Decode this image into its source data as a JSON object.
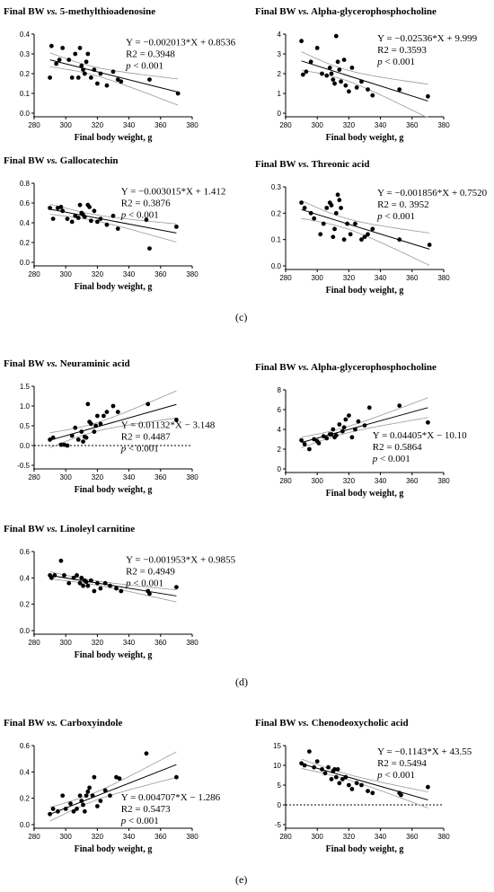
{
  "figure_labels": {
    "c": "(c)",
    "d": "(d)",
    "e": "(e)"
  },
  "chart_data": [
    {
      "type": "scatter",
      "title": "Final BW vs. 5-methylthioadenosine",
      "xlabel": "Final body weight, g",
      "ylabel": "",
      "xlim": [
        280,
        380
      ],
      "ylim": [
        0.0,
        0.4
      ],
      "xticks": [
        280,
        300,
        320,
        340,
        360,
        380
      ],
      "yticks": [
        "0.0",
        "0.1",
        "0.2",
        "0.3",
        "0.4"
      ],
      "fit": {
        "slope": -0.002013,
        "intercept": 0.8536
      },
      "equation": "Y = −0.002013*X + 0.8536",
      "r2": "R2 = 0.3948",
      "p": "p < 0.001",
      "x": [
        290,
        291,
        294,
        298,
        302,
        304,
        306,
        308,
        310,
        311,
        312,
        314,
        316,
        318,
        320,
        322,
        326,
        330,
        333,
        335,
        353,
        371,
        296,
        309,
        313
      ],
      "y": [
        0.18,
        0.34,
        0.25,
        0.33,
        0.27,
        0.18,
        0.3,
        0.18,
        0.24,
        0.22,
        0.2,
        0.3,
        0.18,
        0.22,
        0.15,
        0.2,
        0.14,
        0.21,
        0.17,
        0.16,
        0.17,
        0.1,
        0.27,
        0.33,
        0.26
      ]
    },
    {
      "type": "scatter",
      "title": "Final BW vs. Alpha-glycerophosphocholine",
      "xlabel": "Final body weight, g",
      "ylabel": "",
      "xlim": [
        280,
        380
      ],
      "ylim": [
        0,
        4
      ],
      "xticks": [
        280,
        300,
        320,
        340,
        360,
        380
      ],
      "yticks": [
        "0",
        "1",
        "2",
        "3",
        "4"
      ],
      "fit": {
        "slope": -0.02536,
        "intercept": 9.999
      },
      "equation": "Y = −0.02536*X + 9.999",
      "r2": "R2 = 0.3593",
      "p": "p < 0.001",
      "x": [
        290,
        291,
        293,
        296,
        300,
        303,
        306,
        308,
        310,
        311,
        312,
        314,
        315,
        317,
        318,
        320,
        322,
        325,
        328,
        332,
        335,
        352,
        370,
        309,
        313
      ],
      "y": [
        3.65,
        1.95,
        2.1,
        2.6,
        3.3,
        2.0,
        1.9,
        2.3,
        1.7,
        1.5,
        3.9,
        2.2,
        1.6,
        2.7,
        1.4,
        1.1,
        2.3,
        1.3,
        1.6,
        1.2,
        0.9,
        1.2,
        0.85,
        2.0,
        2.6
      ]
    },
    {
      "type": "scatter",
      "title": "Final BW vs. Gallocatechin",
      "xlabel": "Final body weight, g",
      "ylabel": "",
      "xlim": [
        280,
        380
      ],
      "ylim": [
        0.0,
        0.8
      ],
      "xticks": [
        280,
        300,
        320,
        340,
        360,
        380
      ],
      "yticks": [
        "0.0",
        "0.2",
        "0.4",
        "0.6",
        "0.8"
      ],
      "fit": {
        "slope": -0.003015,
        "intercept": 1.412
      },
      "equation": "Y = −0.003015*X + 1.412",
      "r2": "R2 = 0.3876",
      "p": "p < 0.001",
      "x": [
        290,
        292,
        295,
        298,
        301,
        304,
        306,
        308,
        310,
        311,
        312,
        314,
        316,
        318,
        320,
        322,
        326,
        330,
        333,
        351,
        353,
        370,
        297,
        309,
        315
      ],
      "y": [
        0.55,
        0.44,
        0.55,
        0.52,
        0.44,
        0.41,
        0.47,
        0.45,
        0.5,
        0.48,
        0.46,
        0.58,
        0.42,
        0.52,
        0.41,
        0.44,
        0.38,
        0.47,
        0.34,
        0.43,
        0.14,
        0.36,
        0.56,
        0.58,
        0.56
      ]
    },
    {
      "type": "scatter",
      "title": "Final BW vs. Threonic acid",
      "xlabel": "Final body weight, g",
      "ylabel": "",
      "xlim": [
        280,
        380
      ],
      "ylim": [
        0.0,
        0.3
      ],
      "xticks": [
        280,
        300,
        320,
        340,
        360,
        380
      ],
      "yticks": [
        "0.0",
        "0.1",
        "0.2",
        "0.3"
      ],
      "fit": {
        "slope": -0.001856,
        "intercept": 0.752
      },
      "equation": "Y = −0.001856*X + 0.7520",
      "r2": "R2 = 0. 3952",
      "p": "p < 0.001",
      "x": [
        290,
        292,
        296,
        298,
        302,
        304,
        306,
        308,
        310,
        311,
        312,
        313,
        315,
        317,
        319,
        321,
        324,
        328,
        332,
        335,
        352,
        371,
        309,
        314,
        330
      ],
      "y": [
        0.24,
        0.22,
        0.2,
        0.18,
        0.12,
        0.16,
        0.22,
        0.24,
        0.11,
        0.14,
        0.2,
        0.27,
        0.22,
        0.1,
        0.16,
        0.12,
        0.16,
        0.1,
        0.12,
        0.14,
        0.1,
        0.08,
        0.23,
        0.25,
        0.11
      ]
    },
    {
      "type": "scatter",
      "title": "Final BW vs. Neuraminic acid",
      "xlabel": "Final body weight, g",
      "ylabel": "",
      "xlim": [
        280,
        380
      ],
      "ylim": [
        -0.5,
        1.5
      ],
      "xticks": [
        280,
        300,
        320,
        340,
        360,
        380
      ],
      "yticks": [
        "-0.5",
        "0.0",
        "0.5",
        "1.0",
        "1.5"
      ],
      "zero_line": true,
      "fit": {
        "slope": 0.01132,
        "intercept": -3.148
      },
      "equation": "Y = 0.01132*X − 3.148",
      "r2": "R2 = 0.4487",
      "p": "p < 0.001",
      "x": [
        290,
        292,
        297,
        299,
        301,
        304,
        306,
        308,
        310,
        311,
        312,
        313,
        314,
        316,
        318,
        320,
        322,
        324,
        326,
        330,
        333,
        352,
        370,
        315,
        319
      ],
      "y": [
        0.15,
        0.2,
        0.02,
        0.02,
        0.0,
        0.25,
        0.45,
        0.15,
        0.35,
        0.1,
        0.22,
        0.2,
        1.05,
        0.55,
        0.35,
        0.75,
        0.55,
        0.75,
        0.85,
        1.0,
        0.85,
        1.05,
        0.65,
        0.6,
        0.5
      ]
    },
    {
      "type": "scatter",
      "title": "Final BW vs. Alpha-glycerophosphocholine",
      "xlabel": "Final body weight, g",
      "ylabel": "",
      "xlim": [
        280,
        380
      ],
      "ylim": [
        0,
        8
      ],
      "xticks": [
        280,
        300,
        320,
        340,
        360,
        380
      ],
      "yticks": [
        "0",
        "2",
        "4",
        "6",
        "8"
      ],
      "fit": {
        "slope": 0.04405,
        "intercept": -10.1
      },
      "equation": "Y = 0.04405*X − 10.10",
      "r2": "R2 = 0.5864",
      "p": "p < 0.001",
      "x": [
        290,
        292,
        295,
        298,
        301,
        304,
        306,
        308,
        310,
        311,
        312,
        314,
        316,
        318,
        320,
        322,
        324,
        326,
        330,
        333,
        352,
        370,
        300,
        309,
        317
      ],
      "y": [
        2.9,
        2.5,
        2.0,
        3.0,
        2.6,
        3.3,
        3.1,
        3.5,
        4.0,
        3.2,
        3.4,
        4.5,
        3.8,
        5.0,
        5.4,
        3.2,
        4.0,
        4.8,
        4.4,
        6.2,
        6.4,
        4.7,
        2.8,
        3.5,
        4.2
      ]
    },
    {
      "type": "scatter",
      "title": "Final BW vs. Linoleyl carnitine",
      "xlabel": "Final body weight, g",
      "ylabel": "",
      "xlim": [
        280,
        380
      ],
      "ylim": [
        0.0,
        0.6
      ],
      "xticks": [
        280,
        300,
        320,
        340,
        360,
        380
      ],
      "yticks": [
        "0.0",
        "0.2",
        "0.4",
        "0.6"
      ],
      "fit": {
        "slope": -0.001953,
        "intercept": 0.9855
      },
      "equation": "Y = −0.001953*X + 0.9855",
      "r2": "R2 = 0.4949",
      "p": "p < 0.001",
      "x": [
        290,
        291,
        293,
        297,
        299,
        302,
        305,
        307,
        309,
        310,
        311,
        312,
        314,
        316,
        318,
        320,
        322,
        325,
        328,
        332,
        335,
        352,
        353,
        370,
        313
      ],
      "y": [
        0.42,
        0.4,
        0.42,
        0.53,
        0.42,
        0.36,
        0.4,
        0.42,
        0.36,
        0.4,
        0.34,
        0.38,
        0.34,
        0.38,
        0.3,
        0.36,
        0.32,
        0.36,
        0.34,
        0.32,
        0.3,
        0.3,
        0.28,
        0.33,
        0.37
      ]
    },
    {
      "type": "scatter",
      "title": "Final BW vs. Carboxyindole",
      "xlabel": "Final body weight, g",
      "ylabel": "",
      "xlim": [
        280,
        380
      ],
      "ylim": [
        0.0,
        0.6
      ],
      "xticks": [
        280,
        300,
        320,
        340,
        360,
        380
      ],
      "yticks": [
        "0.0",
        "0.2",
        "0.4",
        "0.6"
      ],
      "fit": {
        "slope": 0.004707,
        "intercept": -1.286
      },
      "equation": "Y = 0.004707*X − 1.286",
      "r2": "R2 = 0.5473",
      "p": "p < 0.001",
      "x": [
        290,
        292,
        295,
        298,
        300,
        303,
        305,
        307,
        309,
        310,
        311,
        312,
        313,
        315,
        317,
        318,
        320,
        322,
        325,
        328,
        332,
        334,
        351,
        370,
        314
      ],
      "y": [
        0.08,
        0.12,
        0.1,
        0.22,
        0.12,
        0.16,
        0.1,
        0.12,
        0.22,
        0.18,
        0.15,
        0.1,
        0.22,
        0.28,
        0.22,
        0.36,
        0.14,
        0.18,
        0.26,
        0.22,
        0.36,
        0.35,
        0.54,
        0.36,
        0.25
      ]
    },
    {
      "type": "scatter",
      "title": "Final BW vs. Chenodeoxycholic acid",
      "xlabel": "Final body weight, g",
      "ylabel": "",
      "xlim": [
        280,
        380
      ],
      "ylim": [
        -5,
        15
      ],
      "xticks": [
        280,
        300,
        320,
        340,
        360,
        380
      ],
      "yticks": [
        "-5",
        "0",
        "5",
        "10",
        "15"
      ],
      "zero_line": true,
      "fit": {
        "slope": -0.1143,
        "intercept": 43.55
      },
      "equation": "Y = −0.1143*X + 43.55",
      "r2": "R2 = 0.5494",
      "p": "p < 0.001",
      "x": [
        290,
        292,
        295,
        298,
        300,
        303,
        305,
        307,
        309,
        310,
        311,
        312,
        314,
        316,
        318,
        320,
        322,
        325,
        328,
        332,
        335,
        352,
        353,
        370,
        313
      ],
      "y": [
        10.5,
        10.0,
        13.5,
        9.5,
        11.0,
        9.0,
        8.0,
        9.5,
        6.5,
        8.5,
        9.0,
        7.0,
        5.5,
        6.5,
        7.0,
        5.0,
        4.0,
        5.5,
        5.0,
        3.5,
        3.0,
        3.0,
        2.5,
        4.5,
        9.0
      ]
    }
  ]
}
